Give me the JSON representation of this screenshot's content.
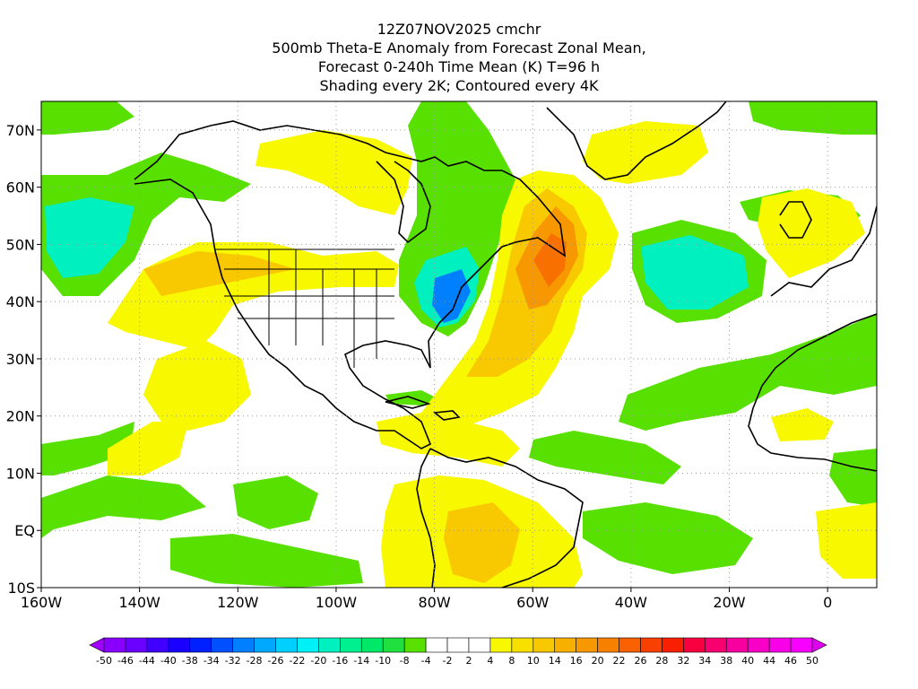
{
  "header": {
    "line1": "12Z07NOV2025 cmchr",
    "line2": "500mb Theta-E Anomaly from Forecast Zonal Mean,",
    "line3": "Forecast 0-240h Time Mean (K) T=96 h",
    "line4": "Shading every 2K; Contoured every 4K"
  },
  "axes": {
    "lat_ticks": [
      "70N",
      "60N",
      "50N",
      "40N",
      "30N",
      "20N",
      "10N",
      "EQ",
      "10S"
    ],
    "lon_ticks": [
      "160W",
      "140W",
      "120W",
      "100W",
      "80W",
      "60W",
      "40W",
      "20W",
      "0"
    ],
    "lat_range": [
      -10,
      75
    ],
    "lon_range": [
      -160,
      10
    ],
    "grid": "dotted"
  },
  "colorbar": {
    "labels": [
      "-50",
      "-46",
      "-44",
      "-40",
      "-38",
      "-34",
      "-32",
      "-28",
      "-26",
      "-22",
      "-20",
      "-16",
      "-14",
      "-10",
      "-8",
      "-4",
      "-2",
      "2",
      "4",
      "8",
      "10",
      "14",
      "16",
      "20",
      "22",
      "26",
      "28",
      "32",
      "34",
      "38",
      "40",
      "44",
      "46",
      "50"
    ],
    "colors": [
      "#a000ff",
      "#8a00ff",
      "#6a00ff",
      "#4000ff",
      "#1a00ff",
      "#0020ff",
      "#0050ff",
      "#0080ff",
      "#00a8ff",
      "#00d0ff",
      "#00f0f8",
      "#00f0c0",
      "#00f090",
      "#00e868",
      "#20e040",
      "#58e000",
      "#ffffff",
      "#ffffff",
      "#ffffff",
      "#f8f800",
      "#f8e000",
      "#f8c800",
      "#f8b000",
      "#f89800",
      "#f88000",
      "#f86000",
      "#f84000",
      "#f82000",
      "#f80040",
      "#f80070",
      "#f800a0",
      "#f800c8",
      "#f800e8",
      "#f800ff",
      "#e000f0"
    ]
  },
  "colors": {
    "green": "#58e000",
    "green_light": "#20e040",
    "cyan": "#00f0c0",
    "blue": "#0080ff",
    "yellow": "#f8f800",
    "yellow_orange": "#f8c800",
    "orange": "#f89800",
    "orange_red": "#f87000"
  }
}
